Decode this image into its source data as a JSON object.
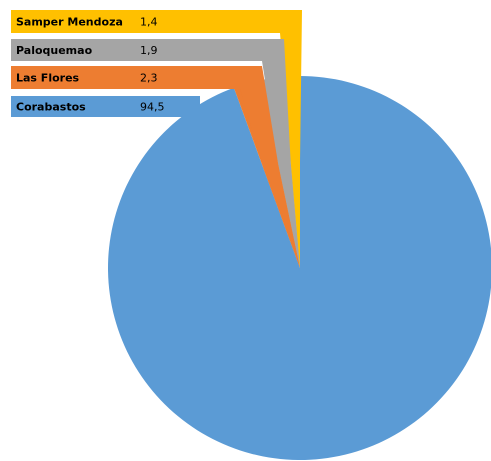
{
  "chart_data": {
    "type": "pie",
    "title": "",
    "legend_placement": "top-left",
    "label_style": "callout-bands",
    "slices": [
      {
        "name": "Corabastos",
        "value": 94.5,
        "display_value": "94,5",
        "color": "#5b9bd5",
        "label_color": "#000000"
      },
      {
        "name": "Las Flores",
        "value": 2.3,
        "display_value": "2,3",
        "color": "#ed7d31",
        "label_color": "#000000"
      },
      {
        "name": "Paloquemao",
        "value": 1.9,
        "display_value": "1,9",
        "color": "#a5a5a5",
        "label_color": "#000000"
      },
      {
        "name": "Samper Mendoza",
        "value": 1.4,
        "display_value": "1,4",
        "color": "#ffc000",
        "label_color": "#000000"
      }
    ]
  }
}
